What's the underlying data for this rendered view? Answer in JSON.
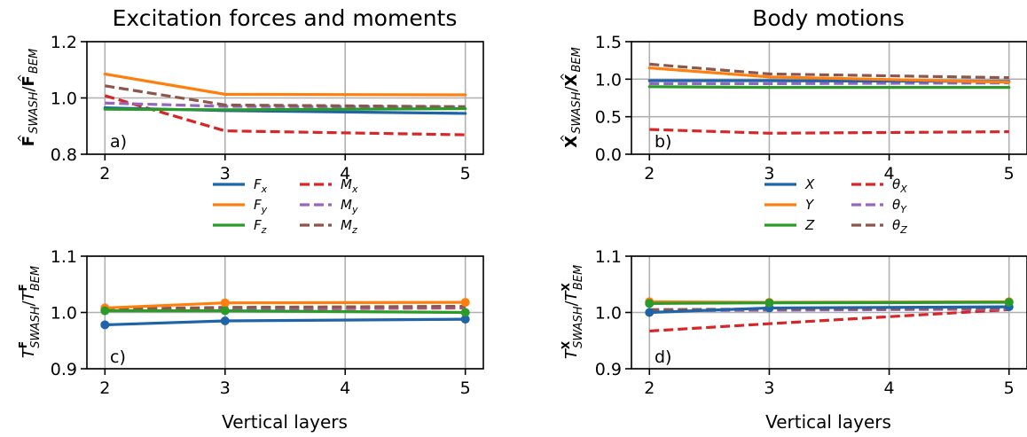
{
  "colors": {
    "blue": "#1f63a8",
    "orange": "#ff7f0e",
    "green": "#2a9a2a",
    "red": "#d62728",
    "purple": "#9467bd",
    "brown": "#8c564b",
    "grid": "#b0b0b0"
  },
  "chart_data": [
    {
      "id": "a",
      "type": "line",
      "title": "Excitation forces and moments",
      "panel_label": "a)",
      "ylabel": "F̂SWASH/F̂BEM",
      "xlabel": "",
      "xlim": [
        1.85,
        5.15
      ],
      "ylim": [
        0.8,
        1.2
      ],
      "xticks": [
        "2",
        "3",
        "4",
        "5"
      ],
      "yticks": [
        "0.8",
        "1.0",
        "1.2"
      ],
      "ytick_values": [
        0.8,
        1.0,
        1.2
      ],
      "grid": true,
      "x": [
        2,
        3,
        5
      ],
      "series": [
        {
          "name": "Fx",
          "color": "blue",
          "dash": false,
          "markers": false,
          "values": [
            0.965,
            0.955,
            0.945
          ]
        },
        {
          "name": "Fy",
          "color": "orange",
          "dash": false,
          "markers": false,
          "values": [
            1.085,
            1.013,
            1.011
          ]
        },
        {
          "name": "Fz",
          "color": "green",
          "dash": false,
          "markers": false,
          "values": [
            0.96,
            0.958,
            0.962
          ]
        },
        {
          "name": "Mx",
          "color": "red",
          "dash": true,
          "markers": false,
          "values": [
            1.008,
            0.883,
            0.869
          ]
        },
        {
          "name": "My",
          "color": "purple",
          "dash": true,
          "markers": false,
          "values": [
            0.982,
            0.97,
            0.968
          ]
        },
        {
          "name": "Mz",
          "color": "brown",
          "dash": true,
          "markers": false,
          "values": [
            1.043,
            0.975,
            0.969
          ]
        }
      ],
      "legend": {
        "placement": "below",
        "entries": [
          {
            "base": "F",
            "sub": "x",
            "color": "blue",
            "dash": false
          },
          {
            "base": "F",
            "sub": "y",
            "color": "orange",
            "dash": false
          },
          {
            "base": "F",
            "sub": "z",
            "color": "green",
            "dash": false
          },
          {
            "base": "M",
            "sub": "x",
            "color": "red",
            "dash": true
          },
          {
            "base": "M",
            "sub": "y",
            "color": "purple",
            "dash": true
          },
          {
            "base": "M",
            "sub": "z",
            "color": "brown",
            "dash": true
          }
        ]
      }
    },
    {
      "id": "b",
      "type": "line",
      "title": "Body motions",
      "panel_label": "b)",
      "ylabel": "X̂SWASH/X̂BEM",
      "xlabel": "",
      "xlim": [
        1.85,
        5.15
      ],
      "ylim": [
        0.0,
        1.5
      ],
      "xticks": [
        "2",
        "3",
        "4",
        "5"
      ],
      "yticks": [
        "0.0",
        "0.5",
        "1.0",
        "1.5"
      ],
      "ytick_values": [
        0.0,
        0.5,
        1.0,
        1.5
      ],
      "grid": true,
      "x": [
        2,
        3,
        5
      ],
      "series": [
        {
          "name": "X",
          "color": "blue",
          "dash": false,
          "markers": false,
          "values": [
            0.98,
            0.98,
            0.97
          ]
        },
        {
          "name": "Y",
          "color": "orange",
          "dash": false,
          "markers": false,
          "values": [
            1.15,
            1.03,
            0.96
          ]
        },
        {
          "name": "Z",
          "color": "green",
          "dash": false,
          "markers": false,
          "values": [
            0.9,
            0.89,
            0.89
          ]
        },
        {
          "name": "θX",
          "color": "red",
          "dash": true,
          "markers": false,
          "values": [
            0.33,
            0.28,
            0.3
          ]
        },
        {
          "name": "θY",
          "color": "purple",
          "dash": true,
          "markers": false,
          "values": [
            0.94,
            0.94,
            0.95
          ]
        },
        {
          "name": "θZ",
          "color": "brown",
          "dash": true,
          "markers": false,
          "values": [
            1.2,
            1.07,
            1.02
          ]
        }
      ],
      "legend": {
        "placement": "below",
        "entries": [
          {
            "base": "X",
            "sub": "",
            "color": "blue",
            "dash": false
          },
          {
            "base": "Y",
            "sub": "",
            "color": "orange",
            "dash": false
          },
          {
            "base": "Z",
            "sub": "",
            "color": "green",
            "dash": false
          },
          {
            "base": "θ",
            "sub": "X",
            "color": "red",
            "dash": true
          },
          {
            "base": "θ",
            "sub": "Y",
            "color": "purple",
            "dash": true
          },
          {
            "base": "θ",
            "sub": "Z",
            "color": "brown",
            "dash": true
          }
        ]
      }
    },
    {
      "id": "c",
      "type": "line",
      "title": "",
      "panel_label": "c)",
      "ylabel": "TFSWASH/TFBEM",
      "xlabel": "Vertical layers",
      "xlim": [
        1.85,
        5.15
      ],
      "ylim": [
        0.9,
        1.1
      ],
      "xticks": [
        "2",
        "3",
        "4",
        "5"
      ],
      "yticks": [
        "0.9",
        "1.0",
        "1.1"
      ],
      "ytick_values": [
        0.9,
        1.0,
        1.1
      ],
      "grid": true,
      "x": [
        2,
        3,
        5
      ],
      "series": [
        {
          "name": "Fx",
          "color": "blue",
          "dash": false,
          "markers": true,
          "values": [
            0.978,
            0.985,
            0.988
          ]
        },
        {
          "name": "Fy",
          "color": "orange",
          "dash": false,
          "markers": true,
          "values": [
            1.008,
            1.017,
            1.018
          ]
        },
        {
          "name": "Fz",
          "color": "green",
          "dash": false,
          "markers": true,
          "values": [
            1.003,
            1.003,
            1.0
          ]
        },
        {
          "name": "Mx",
          "color": "red",
          "dash": true,
          "markers": false,
          "values": [
            1.004,
            1.006,
            1.008
          ]
        },
        {
          "name": "My",
          "color": "purple",
          "dash": true,
          "markers": false,
          "values": [
            1.005,
            1.007,
            1.009
          ]
        },
        {
          "name": "Mz",
          "color": "brown",
          "dash": true,
          "markers": false,
          "values": [
            1.006,
            1.009,
            1.011
          ]
        }
      ]
    },
    {
      "id": "d",
      "type": "line",
      "title": "",
      "panel_label": "d)",
      "ylabel": "TXSWASH/TXBEM",
      "xlabel": "Vertical layers",
      "xlim": [
        1.85,
        5.15
      ],
      "ylim": [
        0.9,
        1.1
      ],
      "xticks": [
        "2",
        "3",
        "4",
        "5"
      ],
      "yticks": [
        "0.9",
        "1.0",
        "1.1"
      ],
      "ytick_values": [
        0.9,
        1.0,
        1.1
      ],
      "grid": true,
      "x": [
        2,
        3,
        5
      ],
      "series": [
        {
          "name": "X",
          "color": "blue",
          "dash": false,
          "markers": true,
          "values": [
            1.0,
            1.008,
            1.01
          ]
        },
        {
          "name": "Y",
          "color": "orange",
          "dash": false,
          "markers": true,
          "values": [
            1.019,
            1.018,
            1.019
          ]
        },
        {
          "name": "Z",
          "color": "green",
          "dash": false,
          "markers": true,
          "values": [
            1.016,
            1.017,
            1.018
          ]
        },
        {
          "name": "θX",
          "color": "red",
          "dash": true,
          "markers": false,
          "values": [
            0.967,
            0.98,
            1.005
          ]
        },
        {
          "name": "θY",
          "color": "purple",
          "dash": true,
          "markers": false,
          "values": [
            1.003,
            1.004,
            1.006
          ]
        },
        {
          "name": "θZ",
          "color": "brown",
          "dash": true,
          "markers": false,
          "values": [
            1.005,
            1.006,
            1.008
          ]
        }
      ]
    }
  ]
}
